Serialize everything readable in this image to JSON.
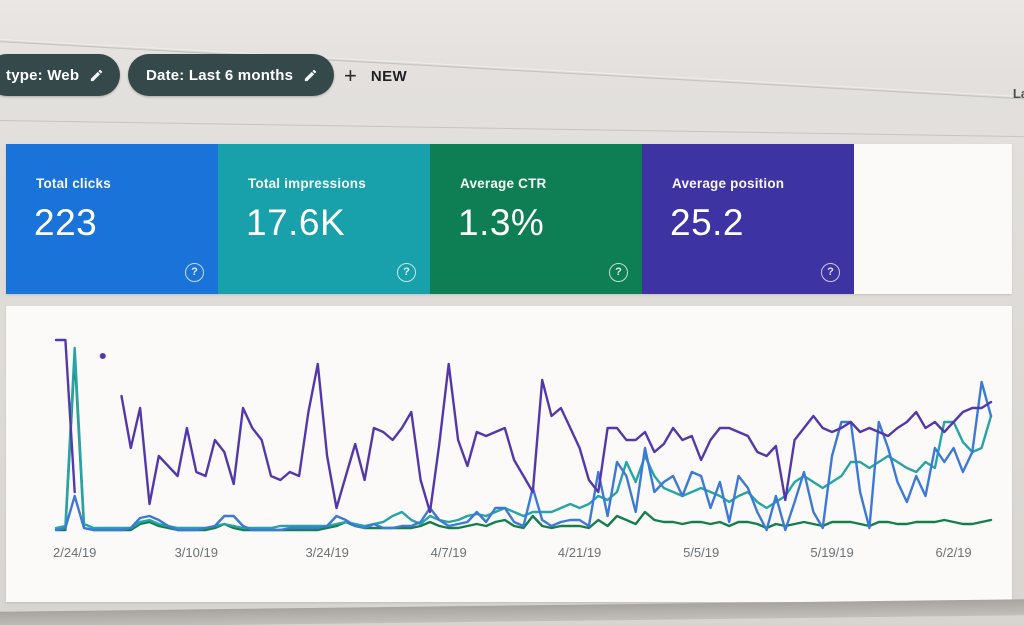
{
  "filters": {
    "chip_type_label": "type: Web",
    "chip_date_label": "Date: Last 6 months",
    "new_button_label": "NEW",
    "new_button_plus": "+",
    "partial_right_text": "La"
  },
  "cards": [
    {
      "label": "Total clicks",
      "value": "223",
      "color": "#1a73d8",
      "help": "?"
    },
    {
      "label": "Total impressions",
      "value": "17.6K",
      "color": "#18a0ab",
      "help": "?"
    },
    {
      "label": "Average CTR",
      "value": "1.3%",
      "color": "#0e7f55",
      "help": "?"
    },
    {
      "label": "Average position",
      "value": "25.2",
      "color": "#3e33a2",
      "help": "?"
    }
  ],
  "chart_data": {
    "type": "line",
    "title": "",
    "xlabel": "",
    "ylabel": "",
    "grid": false,
    "legend": "none (series colors match metric cards)",
    "x_unit": "days (2/24/19 - 6/8/19, one point per day)",
    "y_unit": "relative height, percent of plot height (0 = baseline)",
    "x_tick_indices": [
      2,
      15,
      29,
      42,
      56,
      69,
      83,
      96
    ],
    "x_tick_labels": [
      "2/24/19",
      "3/10/19",
      "3/24/19",
      "4/7/19",
      "4/21/19",
      "5/5/19",
      "5/19/19",
      "6/2/19"
    ],
    "series": [
      {
        "name": "CTR",
        "color": "#157f4c",
        "values": [
          1,
          1,
          88,
          2,
          1,
          1,
          1,
          1,
          1,
          4,
          5,
          3,
          2,
          1,
          1,
          1,
          1,
          2,
          4,
          2,
          1,
          1,
          1,
          1,
          1,
          1,
          1,
          1,
          1,
          2,
          3,
          5,
          3,
          2,
          2,
          2,
          2,
          2,
          2,
          3,
          5,
          3,
          2,
          2,
          3,
          4,
          3,
          5,
          6,
          3,
          2,
          8,
          3,
          2,
          3,
          3,
          3,
          2,
          6,
          3,
          8,
          6,
          4,
          10,
          6,
          5,
          5,
          4,
          5,
          5,
          4,
          5,
          3,
          5,
          5,
          4,
          2,
          4,
          3,
          4,
          5,
          4,
          3,
          5,
          5,
          5,
          4,
          3,
          5,
          5,
          4,
          4,
          5,
          5,
          5,
          6,
          5,
          4,
          4,
          5,
          6
        ]
      },
      {
        "name": "Impressions",
        "color": "#27a4a8",
        "values": [
          2,
          3,
          92,
          4,
          2,
          2,
          2,
          2,
          2,
          5,
          6,
          4,
          3,
          2,
          2,
          2,
          2,
          3,
          4,
          3,
          2,
          2,
          2,
          2,
          3,
          3,
          3,
          3,
          3,
          3,
          4,
          5,
          4,
          3,
          4,
          5,
          8,
          10,
          6,
          4,
          8,
          6,
          5,
          6,
          8,
          9,
          8,
          10,
          12,
          10,
          8,
          10,
          10,
          10,
          12,
          14,
          12,
          14,
          18,
          16,
          20,
          35,
          25,
          38,
          28,
          22,
          20,
          18,
          20,
          22,
          20,
          18,
          15,
          18,
          20,
          15,
          12,
          15,
          18,
          25,
          28,
          25,
          22,
          25,
          28,
          35,
          35,
          32,
          35,
          38,
          35,
          32,
          30,
          35,
          32,
          55,
          55,
          45,
          40,
          42,
          58
        ]
      },
      {
        "name": "Clicks",
        "color": "#3c79d9",
        "values": [
          1,
          2,
          18,
          2,
          1,
          1,
          1,
          1,
          2,
          7,
          8,
          6,
          3,
          1,
          1,
          1,
          2,
          3,
          8,
          8,
          3,
          1,
          1,
          1,
          1,
          2,
          2,
          2,
          2,
          3,
          8,
          6,
          3,
          2,
          4,
          2,
          2,
          3,
          3,
          5,
          12,
          6,
          3,
          4,
          5,
          10,
          5,
          12,
          12,
          5,
          3,
          22,
          6,
          3,
          5,
          6,
          6,
          3,
          30,
          8,
          35,
          28,
          10,
          42,
          20,
          25,
          28,
          18,
          30,
          28,
          12,
          25,
          5,
          28,
          22,
          10,
          1,
          18,
          1,
          15,
          30,
          10,
          2,
          38,
          55,
          55,
          20,
          2,
          55,
          42,
          25,
          15,
          28,
          18,
          42,
          35,
          42,
          30,
          40,
          75,
          58
        ]
      },
      {
        "name": "Position",
        "color": "#5438ab",
        "values": [
          96,
          96,
          20,
          null,
          null,
          88,
          null,
          68,
          42,
          62,
          14,
          38,
          33,
          28,
          52,
          30,
          28,
          46,
          40,
          24,
          62,
          52,
          46,
          28,
          26,
          30,
          28,
          60,
          84,
          38,
          12,
          28,
          44,
          26,
          52,
          50,
          46,
          52,
          60,
          26,
          10,
          44,
          84,
          46,
          33,
          50,
          48,
          50,
          52,
          36,
          28,
          20,
          76,
          58,
          62,
          52,
          42,
          26,
          20,
          52,
          52,
          46,
          46,
          50,
          40,
          44,
          52,
          46,
          48,
          36,
          46,
          52,
          52,
          50,
          48,
          40,
          38,
          43,
          16,
          46,
          52,
          58,
          52,
          50,
          52,
          55,
          50,
          52,
          50,
          48,
          52,
          55,
          60,
          52,
          55,
          50,
          55,
          60,
          62,
          62,
          65
        ]
      }
    ]
  }
}
